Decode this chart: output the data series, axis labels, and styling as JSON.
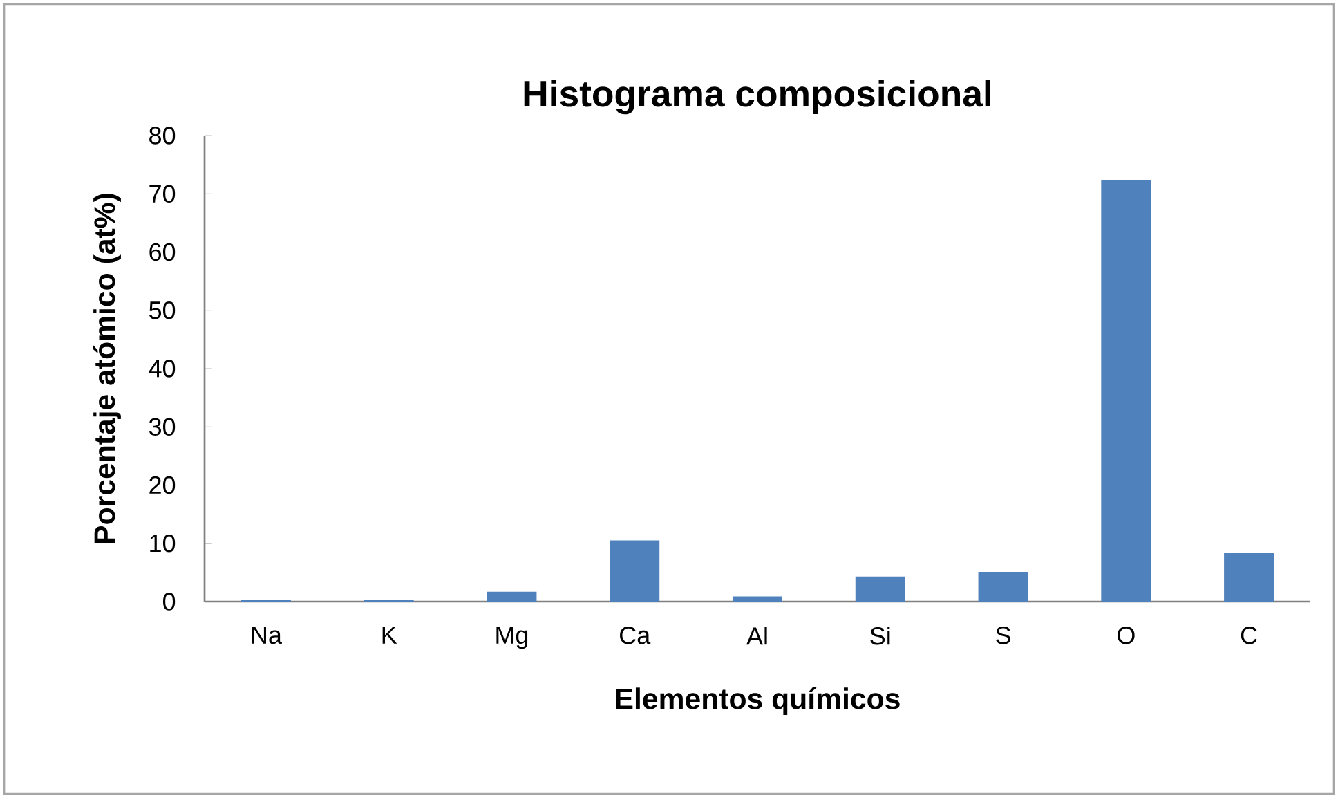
{
  "chart_data": {
    "type": "bar",
    "title": "Histograma composicional",
    "xlabel": "Elementos químicos",
    "ylabel": "Porcentaje atómico (at%)",
    "categories": [
      "Na",
      "K",
      "Mg",
      "Ca",
      "Al",
      "Si",
      "S",
      "O",
      "C"
    ],
    "values": [
      0.3,
      0.3,
      1.7,
      10.5,
      0.9,
      4.3,
      5.1,
      72.4,
      8.3
    ],
    "color": "#4f81bd",
    "ylim": [
      0,
      80
    ],
    "yticks": [
      0,
      10,
      20,
      30,
      40,
      50,
      60,
      70,
      80
    ]
  }
}
